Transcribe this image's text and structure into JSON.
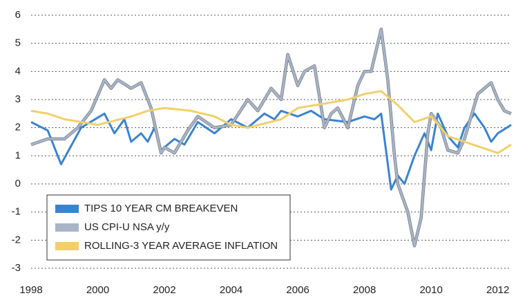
{
  "chart_data": {
    "type": "line",
    "xlim": [
      1998,
      2012.4
    ],
    "xticks": [
      1998,
      2000,
      2002,
      2004,
      2006,
      2008,
      2010,
      2012
    ],
    "ylim": [
      -3,
      6
    ],
    "yticks": [
      -3,
      -2,
      -1,
      0,
      1,
      2,
      3,
      4,
      5,
      6
    ],
    "grid": true,
    "legend": "bottom-left",
    "series": [
      {
        "name": "TIPS 10 YEAR CM BREAKEVEN",
        "color": "#3a83d0",
        "x": [
          1998,
          1998.5,
          1998.9,
          1999.5,
          2000.2,
          2000.5,
          2000.8,
          2001,
          2001.3,
          2001.5,
          2001.7,
          2001.9,
          2002.3,
          2002.6,
          2003,
          2003.5,
          2004,
          2004.5,
          2005,
          2005.3,
          2005.5,
          2006,
          2006.4,
          2006.8,
          2007.5,
          2008,
          2008.3,
          2008.5,
          2008.8,
          2009,
          2009.2,
          2009.5,
          2009.8,
          2010,
          2010.2,
          2010.5,
          2010.8,
          2011,
          2011.3,
          2011.6,
          2011.8,
          2012,
          2012.4
        ],
        "values": [
          2.2,
          1.9,
          0.7,
          2.0,
          2.5,
          1.8,
          2.3,
          1.5,
          1.8,
          1.5,
          2.0,
          1.2,
          1.6,
          1.4,
          2.2,
          1.8,
          2.3,
          2.0,
          2.5,
          2.3,
          2.6,
          2.4,
          2.6,
          2.3,
          2.2,
          2.4,
          2.3,
          2.5,
          -0.2,
          0.3,
          0.0,
          1.0,
          1.8,
          1.2,
          2.5,
          1.7,
          1.3,
          2.0,
          2.5,
          2.0,
          1.5,
          1.8,
          2.1
        ]
      },
      {
        "name": "US CPI-U NSA y/y",
        "color": "#a9b5c6",
        "x": [
          1998,
          1998.5,
          1999,
          1999.4,
          1999.8,
          2000.2,
          2000.4,
          2000.6,
          2001,
          2001.3,
          2001.6,
          2001.9,
          2002,
          2002.3,
          2002.7,
          2003,
          2003.5,
          2004,
          2004.5,
          2004.8,
          2005.2,
          2005.5,
          2005.7,
          2006,
          2006.2,
          2006.5,
          2006.8,
          2007,
          2007.2,
          2007.5,
          2007.8,
          2008,
          2008.2,
          2008.5,
          2008.7,
          2008.9,
          2009,
          2009.3,
          2009.5,
          2009.7,
          2009.9,
          2010,
          2010.3,
          2010.5,
          2010.8,
          2011,
          2011.4,
          2011.8,
          2012,
          2012.2,
          2012.4
        ],
        "values": [
          1.4,
          1.6,
          1.6,
          2.0,
          2.6,
          3.7,
          3.4,
          3.7,
          3.4,
          3.6,
          2.7,
          1.1,
          1.3,
          1.1,
          1.9,
          2.4,
          2.0,
          2.1,
          3.0,
          2.6,
          3.4,
          3.0,
          4.6,
          3.5,
          4.0,
          4.2,
          2.0,
          2.5,
          2.7,
          2.0,
          3.5,
          4.0,
          4.0,
          5.5,
          3.7,
          1.0,
          0.0,
          -1.0,
          -2.2,
          -1.2,
          1.8,
          2.5,
          2.0,
          1.2,
          1.1,
          1.6,
          3.2,
          3.6,
          3.0,
          2.6,
          2.5
        ]
      },
      {
        "name": "ROLLING-3 YEAR AVERAGE INFLATION",
        "color": "#f2cf6a",
        "x": [
          1998,
          1998.5,
          1999,
          1999.5,
          2000,
          2001,
          2001.5,
          2002,
          2002.8,
          2003.5,
          2004,
          2004.5,
          2005.5,
          2006,
          2007,
          2007.5,
          2008,
          2008.5,
          2009,
          2009.5,
          2010,
          2010.5,
          2011,
          2012,
          2012.4
        ],
        "values": [
          2.6,
          2.5,
          2.3,
          2.2,
          2.1,
          2.4,
          2.6,
          2.7,
          2.6,
          2.4,
          2.1,
          2.0,
          2.3,
          2.7,
          2.9,
          3.0,
          3.2,
          3.3,
          2.8,
          2.2,
          2.4,
          1.7,
          1.5,
          1.1,
          1.4
        ]
      }
    ]
  }
}
